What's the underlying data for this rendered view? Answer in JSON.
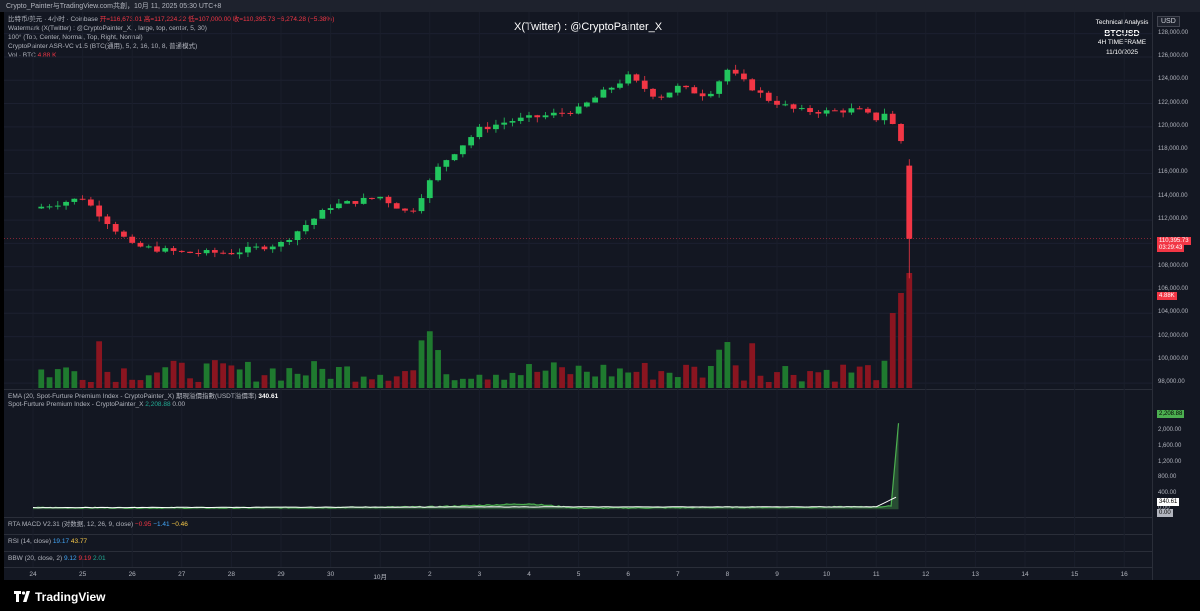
{
  "header": {
    "title": "Crypto_Painter与TradingView.com共創，10月 11, 2025 05:30 UTC+8"
  },
  "legend": {
    "line1_prefix": "比特币/美元 · 4小时 · Coinbase",
    "line1_open": "开=116,673.01",
    "line1_high": "高=117,224.22",
    "line1_low": "低=107,000.00",
    "line1_close": "收=110,395.73",
    "line1_change": "−6,274.28 (−5.38%)",
    "line2": "Watermark (X(Twitter) : @CryptoPainter_X, , large, top, center, 5, 30)",
    "line3": "100° (Top, Center, Normal, Top, Right, Normal)",
    "line4": "CryptoPainter ASR-VC v1.5 (BTC(通用), 5, 2, 16, 10, 8, 普通模式)",
    "line5_prefix": "Vol · BTC",
    "line5_value": "4.88 K"
  },
  "watermark": "X(Twitter) : @CryptoPainter_X",
  "info_box": {
    "line1": "Technical Analysis",
    "symbol": "BTCUSD",
    "timeframe": "4H TIMEFRAME",
    "date": "11/10/2025"
  },
  "currency": "USD",
  "price_tag": {
    "price": "110,395.73",
    "countdown": "03:29:43"
  },
  "volume_tag": "4.88K",
  "premium_legend": {
    "ema_label": "EMA (20, Spot-Furture Premium Index - CryptoPainter_X) 期現溢價指數(USDT溢價率)",
    "ema_value": "340.61",
    "index_label": "Spot-Furture Premium Index - CryptoPainter_X",
    "index_value": "2,208.88",
    "index_value2": "0.00"
  },
  "premium_tags": {
    "value": "2,208.88",
    "ema": "340.61",
    "zero": "0.00"
  },
  "macd_legend": {
    "label": "RTA MACD V2.31 (对数据, 12, 26, 9, close)",
    "v1": "−0.95",
    "v2": "−1.41",
    "v3": "−0.46"
  },
  "rsi_legend": {
    "label": "RSI (14, close)",
    "v1": "19.17",
    "v2": "43.77"
  },
  "bbw_legend": {
    "label": "BBW (20, close, 2)",
    "v1": "9.12",
    "v2": "9.19",
    "v3": "2.01"
  },
  "footer": {
    "brand": "TradingView"
  },
  "chart_data": {
    "type": "candlestick",
    "price_axis": {
      "ticks": [
        "128,000.00",
        "126,000.00",
        "124,000.00",
        "122,000.00",
        "120,000.00",
        "118,000.00",
        "116,000.00",
        "114,000.00",
        "112,000.00",
        "110,000.00",
        "108,000.00",
        "106,000.00",
        "104,000.00",
        "102,000.00",
        "100,000.00",
        "98,000.00"
      ],
      "min": 97500,
      "max": 129000
    },
    "premium_axis": {
      "ticks": [
        "2,400.00",
        "2,000.00",
        "1,600.00",
        "1,200.00",
        "800.00",
        "400.00",
        "0.00"
      ],
      "min": -200,
      "max": 2600
    },
    "x_labels": [
      "24",
      "25",
      "26",
      "27",
      "28",
      "29",
      "30",
      "10月",
      "2",
      "3",
      "4",
      "5",
      "6",
      "7",
      "8",
      "9",
      "10",
      "11",
      "12",
      "13",
      "14",
      "15",
      "16"
    ],
    "x_range": [
      0,
      22.8
    ],
    "candle_anchors": [
      [
        0.0,
        113000
      ],
      [
        1.0,
        113900
      ],
      [
        2.0,
        109800
      ],
      [
        3.0,
        109200
      ],
      [
        4.0,
        109200
      ],
      [
        5.0,
        110000
      ],
      [
        6.0,
        113200
      ],
      [
        7.0,
        114000
      ],
      [
        7.6,
        112500
      ],
      [
        8.2,
        116700
      ],
      [
        9.0,
        119800
      ],
      [
        9.6,
        120500
      ],
      [
        10.4,
        121000
      ],
      [
        11.0,
        121500
      ],
      [
        11.4,
        122700
      ],
      [
        12.0,
        124300
      ],
      [
        12.6,
        122500
      ],
      [
        13.0,
        123400
      ],
      [
        13.6,
        122700
      ],
      [
        14.0,
        124900
      ],
      [
        14.8,
        122400
      ],
      [
        15.4,
        121400
      ],
      [
        16.0,
        121300
      ],
      [
        16.6,
        121500
      ],
      [
        17.0,
        120700
      ],
      [
        17.2,
        121300
      ],
      [
        17.5,
        118800
      ],
      [
        17.7,
        117000
      ],
      [
        17.8,
        110396
      ]
    ],
    "premium_anchors": [
      [
        0,
        40
      ],
      [
        4,
        35
      ],
      [
        8,
        60
      ],
      [
        10,
        140
      ],
      [
        11,
        30
      ],
      [
        14,
        50
      ],
      [
        17,
        60
      ],
      [
        17.3,
        80
      ],
      [
        17.45,
        2208.88
      ]
    ],
    "ema_anchors": [
      [
        0,
        40
      ],
      [
        10,
        60
      ],
      [
        17,
        60
      ],
      [
        17.45,
        340.61
      ]
    ]
  }
}
